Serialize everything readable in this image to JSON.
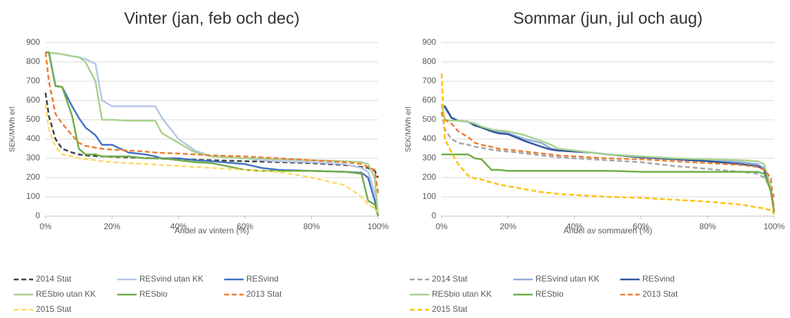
{
  "chart_data": [
    {
      "type": "line",
      "title": "Vinter (jan, feb och dec)",
      "xlabel": "Andel av vintern (%)",
      "ylabel": "SEK/MWh erl",
      "xlim": [
        0,
        100
      ],
      "xticks": [
        {
          "value": 0,
          "label": "0%"
        },
        {
          "value": 20,
          "label": "20%"
        },
        {
          "value": 40,
          "label": "40%"
        },
        {
          "value": 60,
          "label": "60%"
        },
        {
          "value": 80,
          "label": "80%"
        },
        {
          "value": 100,
          "label": "100%"
        }
      ],
      "ylim": [
        0,
        900
      ],
      "yticks": [
        0,
        100,
        200,
        300,
        400,
        500,
        600,
        700,
        800,
        900
      ],
      "grid": true,
      "legend": "bottom",
      "x": [
        0,
        1,
        3,
        5,
        8,
        10,
        12,
        15,
        17,
        20,
        25,
        30,
        33,
        35,
        40,
        45,
        50,
        60,
        65,
        70,
        80,
        90,
        95,
        97,
        99,
        100
      ],
      "series": [
        {
          "name": "2014 Stat",
          "color": "#404040",
          "dashed": true,
          "values": [
            640,
            520,
            400,
            350,
            330,
            320,
            315,
            312,
            310,
            308,
            305,
            302,
            300,
            298,
            296,
            293,
            290,
            285,
            283,
            280,
            275,
            265,
            255,
            250,
            235,
            200
          ]
        },
        {
          "name": "RESvind utan KK",
          "color": "#b4c7e7",
          "dashed": false,
          "values": [
            850,
            848,
            845,
            840,
            830,
            825,
            815,
            790,
            600,
            570,
            570,
            570,
            570,
            510,
            400,
            340,
            310,
            300,
            290,
            285,
            280,
            270,
            250,
            230,
            120,
            0
          ]
        },
        {
          "name": "RESvind",
          "color": "#4472c4",
          "dashed": false,
          "values": [
            850,
            850,
            675,
            670,
            570,
            510,
            460,
            420,
            370,
            370,
            330,
            320,
            310,
            300,
            300,
            290,
            285,
            270,
            250,
            240,
            235,
            230,
            225,
            200,
            80,
            0
          ]
        },
        {
          "name": "RESbio utan KK",
          "color": "#a9d18e",
          "dashed": false,
          "values": [
            850,
            848,
            845,
            840,
            830,
            825,
            800,
            700,
            500,
            500,
            495,
            495,
            495,
            430,
            380,
            330,
            310,
            300,
            300,
            295,
            290,
            285,
            280,
            270,
            200,
            0
          ]
        },
        {
          "name": "RESbio",
          "color": "#70ad47",
          "dashed": false,
          "values": [
            850,
            850,
            675,
            670,
            520,
            350,
            320,
            320,
            310,
            310,
            310,
            300,
            300,
            300,
            290,
            280,
            275,
            240,
            235,
            235,
            235,
            230,
            220,
            80,
            60,
            0
          ]
        },
        {
          "name": "2013 Stat",
          "color": "#ed7d31",
          "dashed": true,
          "values": [
            850,
            700,
            530,
            480,
            420,
            380,
            365,
            355,
            350,
            345,
            340,
            335,
            330,
            328,
            325,
            320,
            315,
            310,
            305,
            300,
            290,
            280,
            270,
            255,
            240,
            120
          ]
        },
        {
          "name": "2015 Stat",
          "color": "#ffd966",
          "dashed": true,
          "values": [
            580,
            450,
            360,
            320,
            310,
            300,
            295,
            290,
            285,
            280,
            275,
            270,
            268,
            265,
            260,
            255,
            250,
            240,
            235,
            230,
            200,
            160,
            100,
            60,
            40,
            20
          ]
        }
      ]
    },
    {
      "type": "line",
      "title": "Sommar (jun, jul och aug)",
      "xlabel": "Andel av sommaren (%)",
      "ylabel": "SEK/MWh erl",
      "xlim": [
        0,
        100
      ],
      "xticks": [
        {
          "value": 0,
          "label": "0%"
        },
        {
          "value": 20,
          "label": "20%"
        },
        {
          "value": 40,
          "label": "40%"
        },
        {
          "value": 60,
          "label": "60%"
        },
        {
          "value": 80,
          "label": "80%"
        },
        {
          "value": 100,
          "label": "100%"
        }
      ],
      "ylim": [
        0,
        900
      ],
      "yticks": [
        0,
        100,
        200,
        300,
        400,
        500,
        600,
        700,
        800,
        900
      ],
      "grid": true,
      "legend": "bottom",
      "x": [
        0,
        1,
        3,
        5,
        8,
        10,
        12,
        15,
        17,
        20,
        25,
        30,
        33,
        35,
        40,
        45,
        50,
        60,
        65,
        70,
        80,
        90,
        95,
        97,
        99,
        100
      ],
      "series": [
        {
          "name": "2014 Stat",
          "color": "#a5a5a5",
          "dashed": true,
          "values": [
            540,
            450,
            400,
            380,
            370,
            360,
            355,
            345,
            340,
            335,
            325,
            315,
            310,
            305,
            300,
            295,
            290,
            280,
            270,
            260,
            245,
            230,
            220,
            200,
            150,
            100
          ]
        },
        {
          "name": "RESvind utan KK",
          "color": "#8faadc",
          "dashed": false,
          "values": [
            570,
            560,
            510,
            495,
            490,
            470,
            460,
            440,
            440,
            430,
            400,
            380,
            350,
            345,
            340,
            330,
            320,
            310,
            305,
            300,
            290,
            280,
            270,
            250,
            150,
            20
          ]
        },
        {
          "name": "RESvind",
          "color": "#2f5597",
          "dashed": false,
          "values": [
            570,
            570,
            510,
            495,
            490,
            470,
            460,
            440,
            430,
            425,
            390,
            360,
            345,
            340,
            335,
            330,
            320,
            305,
            300,
            295,
            285,
            270,
            260,
            240,
            130,
            20
          ]
        },
        {
          "name": "RESbio utan KK",
          "color": "#a9d18e",
          "dashed": false,
          "values": [
            580,
            500,
            495,
            495,
            490,
            480,
            465,
            450,
            445,
            440,
            420,
            390,
            370,
            350,
            340,
            330,
            320,
            310,
            305,
            300,
            295,
            290,
            285,
            270,
            150,
            20
          ]
        },
        {
          "name": "RESbio",
          "color": "#70ad47",
          "dashed": false,
          "values": [
            320,
            320,
            320,
            320,
            320,
            300,
            295,
            240,
            240,
            235,
            235,
            235,
            235,
            235,
            235,
            235,
            235,
            230,
            230,
            230,
            230,
            230,
            230,
            220,
            130,
            20
          ]
        },
        {
          "name": "2013 Stat",
          "color": "#ed7d31",
          "dashed": true,
          "values": [
            540,
            500,
            480,
            440,
            410,
            380,
            370,
            360,
            350,
            345,
            335,
            325,
            320,
            315,
            310,
            305,
            300,
            295,
            290,
            285,
            275,
            265,
            255,
            240,
            200,
            30
          ]
        },
        {
          "name": "2015 Stat",
          "color": "#ffc000",
          "dashed": true,
          "values": [
            740,
            400,
            330,
            270,
            210,
            195,
            190,
            175,
            165,
            155,
            140,
            125,
            120,
            115,
            110,
            105,
            100,
            95,
            90,
            85,
            75,
            60,
            45,
            40,
            30,
            10
          ]
        }
      ]
    }
  ]
}
